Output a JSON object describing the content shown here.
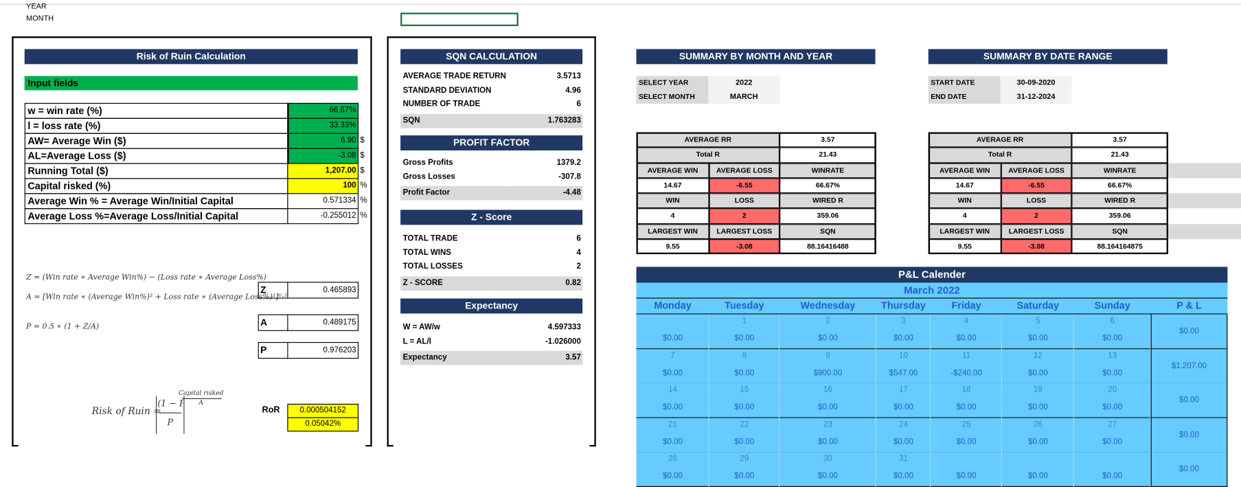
{
  "top": {
    "year_label": "YEAR",
    "month_label": "MONTH"
  },
  "colors": {
    "navy": "#203864",
    "input_green": "#00b050",
    "input_yellow": "#ffff00",
    "loss_red": "#ff6b6b",
    "calendar_blue": "#66ccff",
    "grey": "#d9d9d9"
  },
  "risk": {
    "title": "Risk of Ruin Calculation",
    "input_title": "Input fields",
    "rows": [
      {
        "label": "w = win rate (%)",
        "value": "66.67%",
        "unit": ""
      },
      {
        "label": "l =  loss rate (%)",
        "value": "33.33%",
        "unit": ""
      },
      {
        "label": "AW= Average Win ($)",
        "value": "6.90",
        "unit": "$"
      },
      {
        "label": "AL=Average Loss ($)",
        "value": "-3.08",
        "unit": "$"
      },
      {
        "label": "Running Total ($)",
        "value": "1,207.00",
        "unit": "$"
      },
      {
        "label": "Capital risked (%)",
        "value": "100",
        "unit": "%"
      },
      {
        "label": "Average Win % = Average Win/Initial Capital",
        "value": "0.571334",
        "unit": "%"
      },
      {
        "label": "Average Loss %=Average Loss/Initial Capital",
        "value": "-0.255012",
        "unit": "%"
      }
    ],
    "formulas": {
      "z": "Z = (Win rate ∗ Average Win%) − (Loss rate ∗ Average Loss%)",
      "a": "A = [Win rate ∗ (Average Win%)² + Loss rate ∗ (Average Loss%)²]⁰·⁵",
      "p": "P = 0.5 ∗ (1 + Z/A)",
      "ror_lhs": "Risk of Ruin =",
      "ror_frac_num": "(1 − P)",
      "ror_frac_den": "P",
      "ror_exp_num": "Capital risked",
      "ror_exp_den": "A"
    },
    "results": [
      {
        "label": "Z",
        "value": "0.465893"
      },
      {
        "label": "A",
        "value": "0.489175"
      },
      {
        "label": "P",
        "value": "0.976203"
      }
    ],
    "ror": {
      "label": "RoR",
      "value": "0.000504152",
      "percent": "0.05042%"
    }
  },
  "sqn": {
    "title": "SQN CALCULATION",
    "rows": [
      {
        "label": "AVERAGE TRADE RETURN",
        "value": "3.5713"
      },
      {
        "label": "STANDARD DEVIATION",
        "value": "4.96"
      },
      {
        "label": "NUMBER OF TRADE",
        "value": "6"
      },
      {
        "label": "SQN",
        "value": "1.763283"
      }
    ]
  },
  "profit_factor": {
    "title": "PROFIT FACTOR",
    "rows": [
      {
        "label": "Gross Profits",
        "value": "1379.2"
      },
      {
        "label": "Gross Losses",
        "value": "-307.8"
      },
      {
        "label": "Profit Factor",
        "value": "-4.48"
      }
    ]
  },
  "zscore": {
    "title": "Z - Score",
    "rows": [
      {
        "label": "TOTAL TRADE",
        "value": "6"
      },
      {
        "label": "TOTAL WINS",
        "value": "4"
      },
      {
        "label": "TOTAL LOSSES",
        "value": "2"
      },
      {
        "label": "Z - SCORE",
        "value": "0.82"
      }
    ]
  },
  "expectancy": {
    "title": "Expectancy",
    "rows": [
      {
        "label": "W = AW/w",
        "value": "4.597333"
      },
      {
        "label": "L = AL/l",
        "value": "-1.026000"
      },
      {
        "label": "Expectancy",
        "value": "3.57"
      }
    ]
  },
  "summary_month": {
    "title": "SUMMARY BY MONTH AND YEAR",
    "filters": [
      {
        "label": "SELECT YEAR",
        "value": "2022"
      },
      {
        "label": "SELECT MONTH",
        "value": "MARCH"
      }
    ],
    "stats": {
      "avg_rr_label": "AVERAGE RR",
      "avg_rr": "3.57",
      "total_r_label": "Total R",
      "total_r": "21.43",
      "h1": [
        "AVERAGE WIN",
        "AVERAGE LOSS",
        "WINRATE"
      ],
      "v1": [
        "14.67",
        "-6.55",
        "66.67%"
      ],
      "h2": [
        "WIN",
        "LOSS",
        "WIRED R"
      ],
      "v2": [
        "4",
        "2",
        "359.06"
      ],
      "h3": [
        "LARGEST WIN",
        "LARGEST LOSS",
        "SQN"
      ],
      "v3": [
        "9.55",
        "-3.08",
        "88.16416488"
      ]
    }
  },
  "summary_range": {
    "title": "SUMMARY BY DATE RANGE",
    "filters": [
      {
        "label": "START DATE",
        "value": "30-09-2020"
      },
      {
        "label": "END DATE",
        "value": "31-12-2024"
      }
    ],
    "stats": {
      "avg_rr_label": "AVERAGE RR",
      "avg_rr": "3.57",
      "total_r_label": "Total R",
      "total_r": "21.43",
      "h1": [
        "AVERAGE WIN",
        "AVERAGE LOSS",
        "WINRATE"
      ],
      "v1": [
        "14.67",
        "-6.55",
        "66.67%"
      ],
      "h2": [
        "WIN",
        "LOSS",
        "WIRED R"
      ],
      "v2": [
        "4",
        "2",
        "359.06"
      ],
      "h3": [
        "LARGEST WIN",
        "LARGEST LOSS",
        "SQN"
      ],
      "v3": [
        "9.55",
        "-3.08",
        "88.164164875"
      ]
    }
  },
  "calendar": {
    "title": "P&L Calender",
    "month": "March 2022",
    "headers": [
      "Monday",
      "Tuesday",
      "Wednesday",
      "Thursday",
      "Friday",
      "Saturday",
      "Sunday",
      "P & L"
    ],
    "weeks": [
      {
        "days": [
          [
            "",
            "$0.00"
          ],
          [
            "1",
            "$0.00"
          ],
          [
            "2",
            "$0.00"
          ],
          [
            "3",
            "$0.00"
          ],
          [
            "4",
            "$0.00"
          ],
          [
            "5",
            "$0.00"
          ],
          [
            "6",
            "$0.00"
          ]
        ],
        "total": "$0.00"
      },
      {
        "days": [
          [
            "7",
            "$0.00"
          ],
          [
            "8",
            "$0.00"
          ],
          [
            "9",
            "$900.00"
          ],
          [
            "10",
            "$547.00"
          ],
          [
            "11",
            "-$240.00"
          ],
          [
            "12",
            "$0.00"
          ],
          [
            "13",
            "$0.00"
          ]
        ],
        "total": "$1,207.00"
      },
      {
        "days": [
          [
            "14",
            "$0.00"
          ],
          [
            "15",
            "$0.00"
          ],
          [
            "16",
            "$0.00"
          ],
          [
            "17",
            "$0.00"
          ],
          [
            "18",
            "$0.00"
          ],
          [
            "19",
            "$0.00"
          ],
          [
            "20",
            "$0.00"
          ]
        ],
        "total": "$0.00"
      },
      {
        "days": [
          [
            "21",
            "$0.00"
          ],
          [
            "22",
            "$0.00"
          ],
          [
            "23",
            "$0.00"
          ],
          [
            "24",
            "$0.00"
          ],
          [
            "25",
            "$0.00"
          ],
          [
            "26",
            "$0.00"
          ],
          [
            "27",
            "$0.00"
          ]
        ],
        "total": "$0.00"
      },
      {
        "days": [
          [
            "28",
            "$0.00"
          ],
          [
            "29",
            "$0.00"
          ],
          [
            "30",
            "$0.00"
          ],
          [
            "31",
            "$0.00"
          ],
          [
            "",
            "$0.00"
          ],
          [
            "",
            "$0.00"
          ],
          [
            "",
            "$0.00"
          ]
        ],
        "total": "$0.00"
      }
    ]
  }
}
